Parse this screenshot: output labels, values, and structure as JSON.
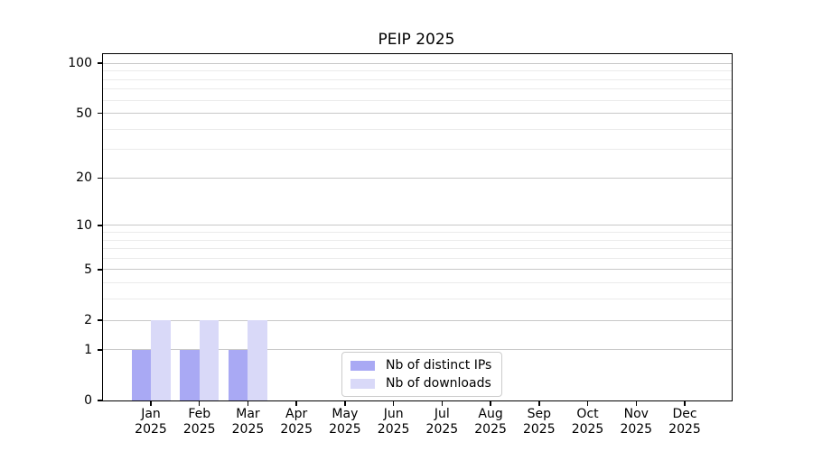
{
  "chart_data": {
    "type": "bar",
    "title": "PEIP 2025",
    "categories": [
      "Jan",
      "Feb",
      "Mar",
      "Apr",
      "May",
      "Jun",
      "Jul",
      "Aug",
      "Sep",
      "Oct",
      "Nov",
      "Dec"
    ],
    "category_year": "2025",
    "series": [
      {
        "name": "Nb of distinct IPs",
        "color": "#a9a9f4",
        "values": [
          1,
          1,
          1,
          0,
          0,
          0,
          0,
          0,
          0,
          0,
          0,
          0
        ]
      },
      {
        "name": "Nb of downloads",
        "color": "#d9d9f8",
        "values": [
          2,
          2,
          2,
          0,
          0,
          0,
          0,
          0,
          0,
          0,
          0,
          0
        ]
      }
    ],
    "xlabel": "",
    "ylabel": "",
    "y_scale": "log1p",
    "y_axis_ticks": [
      0,
      1,
      2,
      5,
      10,
      20,
      50,
      100
    ],
    "y_minor_gridlines": [
      3,
      4,
      6,
      7,
      8,
      9,
      30,
      40,
      60,
      70,
      80,
      90
    ],
    "ylim": [
      0,
      113.5
    ],
    "grid": "horizontal",
    "legend_position": "lower center",
    "colors": {
      "major_grid": "#c8c8c8",
      "minor_grid": "#ebebeb",
      "spine": "#000000",
      "text": "#000000",
      "background": "#ffffff"
    }
  }
}
